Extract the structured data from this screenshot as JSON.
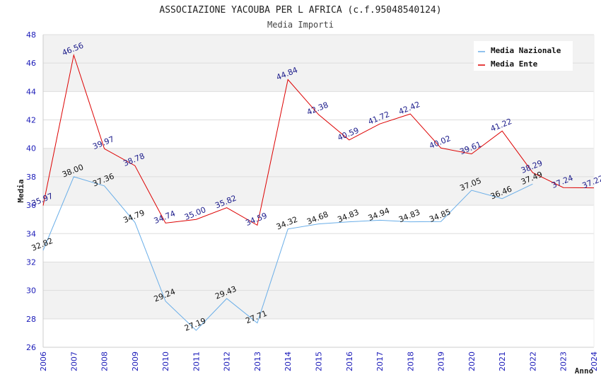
{
  "chart_data": {
    "type": "line",
    "title": "ASSOCIAZIONE YACOUBA PER L AFRICA (c.f.95048540124)",
    "subtitle": "Media Importi",
    "xlabel": "Anno",
    "ylabel": "Media",
    "ylim": [
      26,
      48
    ],
    "yticks": [
      "26",
      "28",
      "30",
      "32",
      "34",
      "36",
      "38",
      "40",
      "42",
      "44",
      "46",
      "48"
    ],
    "x": [
      "2006",
      "2007",
      "2008",
      "2009",
      "2010",
      "2011",
      "2012",
      "2013",
      "2014",
      "2015",
      "2016",
      "2017",
      "2018",
      "2019",
      "2020",
      "2021",
      "2022",
      "2023",
      "2024"
    ],
    "grid": "horizontal",
    "legend_position": "top-right",
    "series": [
      {
        "name": "Media Nazionale",
        "color": "#6aaee8",
        "values": [
          32.82,
          38.0,
          37.36,
          34.79,
          29.24,
          27.19,
          29.43,
          27.71,
          34.32,
          34.68,
          34.83,
          34.94,
          34.83,
          34.85,
          37.05,
          36.46,
          37.49,
          null,
          null
        ],
        "labels": [
          "32.82",
          "38.00",
          "37.36",
          "34.79",
          "29.24",
          "27.19",
          "29.43",
          "27.71",
          "34.32",
          "34.68",
          "34.83",
          "34.94",
          "34.83",
          "34.85",
          "37.05",
          "36.46",
          "37.49",
          null,
          null
        ]
      },
      {
        "name": "Media Ente",
        "color": "#dd0000",
        "values": [
          35.97,
          46.56,
          39.97,
          38.78,
          34.74,
          35.0,
          35.82,
          34.59,
          44.84,
          42.38,
          40.59,
          41.72,
          42.42,
          40.02,
          39.61,
          41.22,
          38.29,
          37.24,
          37.22
        ],
        "labels": [
          "35.97",
          "46.56",
          "39.97",
          "38.78",
          "34.74",
          "35.00",
          "35.82",
          "34.59",
          "44.84",
          "42.38",
          "40.59",
          "41.72",
          "42.42",
          "40.02",
          "39.61",
          "41.22",
          "38.29",
          "37.24",
          "37.22"
        ]
      }
    ]
  }
}
